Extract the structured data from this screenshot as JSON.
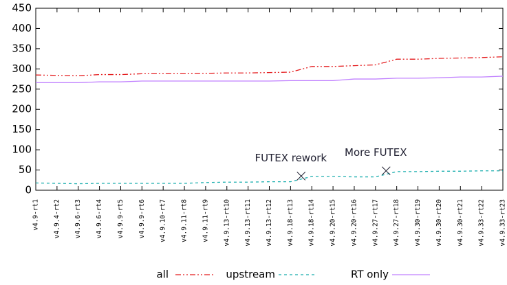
{
  "chart_data": {
    "type": "line",
    "categories": [
      "v4.9-rt1",
      "v4.9.4-rt2",
      "v4.9.6-rt3",
      "v4.9.6-rt4",
      "v4.9.9-rt5",
      "v4.9.9-rt6",
      "v4.9.10-rt7",
      "v4.9.11-rt8",
      "v4.9.11-rt9",
      "v4.9.13-rt10",
      "v4.9.13-rt11",
      "v4.9.13-rt12",
      "v4.9.18-rt13",
      "v4.9.18-rt14",
      "v4.9.20-rt15",
      "v4.9.20-rt16",
      "v4.9.27-rt17",
      "v4.9.27-rt18",
      "v4.9.30-rt19",
      "v4.9.30-rt20",
      "v4.9.30-rt21",
      "v4.9.33-rt22",
      "v4.9.33-rt23"
    ],
    "series": [
      {
        "name": "all",
        "color": "#e41a1c",
        "dash": "8,3,2,3,2,3",
        "values": [
          285,
          284,
          283,
          286,
          286,
          288,
          288,
          288,
          289,
          290,
          290,
          291,
          292,
          306,
          306,
          308,
          310,
          324,
          324,
          326,
          327,
          328,
          330
        ]
      },
      {
        "name": "upstream",
        "color": "#1aaeae",
        "dash": "4,4",
        "values": [
          18,
          17,
          16,
          17,
          17,
          17,
          17,
          17,
          19,
          20,
          20,
          21,
          21,
          34,
          34,
          33,
          33,
          46,
          46,
          47,
          47,
          48,
          48
        ]
      },
      {
        "name": "RT only",
        "color": "#c080ff",
        "dash": "",
        "values": [
          266,
          266,
          266,
          268,
          268,
          270,
          270,
          270,
          270,
          270,
          270,
          270,
          271,
          271,
          271,
          275,
          275,
          277,
          277,
          278,
          280,
          280,
          282
        ]
      }
    ],
    "annotations": [
      {
        "text": "FUTEX rework",
        "x": 12.5,
        "y": 35
      },
      {
        "text": "More FUTEX",
        "x": 16.5,
        "y": 48
      }
    ],
    "ylim": [
      0,
      450
    ],
    "yticks": [
      0,
      50,
      100,
      150,
      200,
      250,
      300,
      350,
      400,
      450
    ],
    "grid": false,
    "legend": "bottom"
  }
}
